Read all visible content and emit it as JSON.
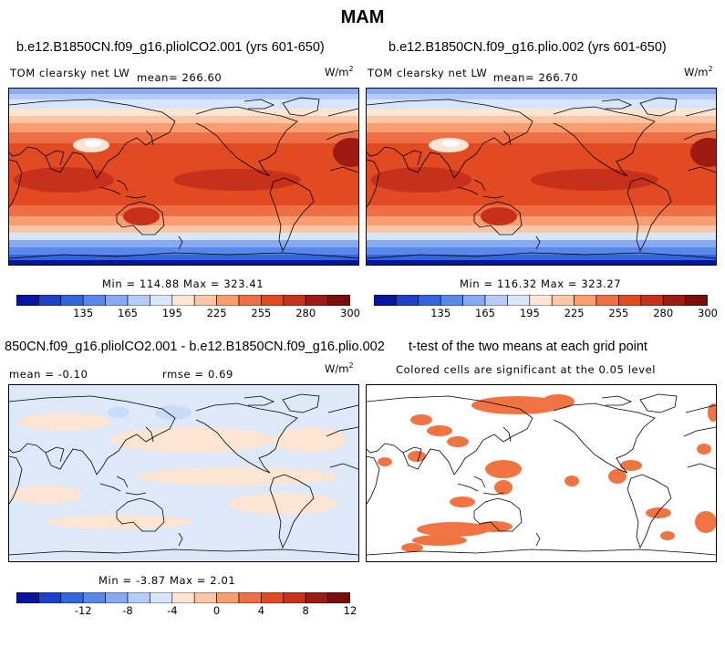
{
  "main_title": "MAM",
  "panels": [
    {
      "title": "b.e12.B1850CN.f09_g16.pliolCO2.001 (yrs 601-650)",
      "left_label": "TOM clearsky net LW",
      "stat_label": "mean= 266.60",
      "units": "W/m",
      "units_exp": "2",
      "minmax": "Min = 114.88 Max = 323.41",
      "colorbar_ticks": [
        "135",
        "165",
        "195",
        "225",
        "255",
        "280",
        "300"
      ]
    },
    {
      "title": "b.e12.B1850CN.f09_g16.plio.002 (yrs 601-650)",
      "left_label": "TOM clearsky net LW",
      "stat_label": "mean= 266.70",
      "units": "W/m",
      "units_exp": "2",
      "minmax": "Min = 116.32 Max = 323.27",
      "colorbar_ticks": [
        "135",
        "165",
        "195",
        "225",
        "255",
        "280",
        "300"
      ]
    },
    {
      "title": "850CN.f09_g16.pliolCO2.001 - b.e12.B1850CN.f09_g16.plio.002",
      "left_label": "mean =  -0.10",
      "stat_label": "rmse =   0.69",
      "units": "W/m",
      "units_exp": "2",
      "minmax": "Min = -3.87 Max =   2.01",
      "colorbar_ticks": [
        "-12",
        "-8",
        "-4",
        "0",
        "4",
        "8",
        "12"
      ]
    },
    {
      "title": "t-test of the two means at each grid point",
      "subtitle": "Colored cells are significant at the 0.05 level"
    }
  ],
  "colorbar_colors": [
    "#06149e",
    "#1f41c8",
    "#3366dd",
    "#5a88ea",
    "#88aaf2",
    "#b4ccf7",
    "#d7e6fb",
    "#fde5d3",
    "#fbc6a6",
    "#f79d72",
    "#ef6e43",
    "#e24a22",
    "#c7301b",
    "#9e1b14",
    "#7a0e0c"
  ],
  "map_colors": {
    "diff_base": "#dde9f9",
    "diff_pos": "#fde5d3",
    "diff_neg": "#c8dbf7",
    "sig": "#f07442",
    "coast": "#000000"
  }
}
